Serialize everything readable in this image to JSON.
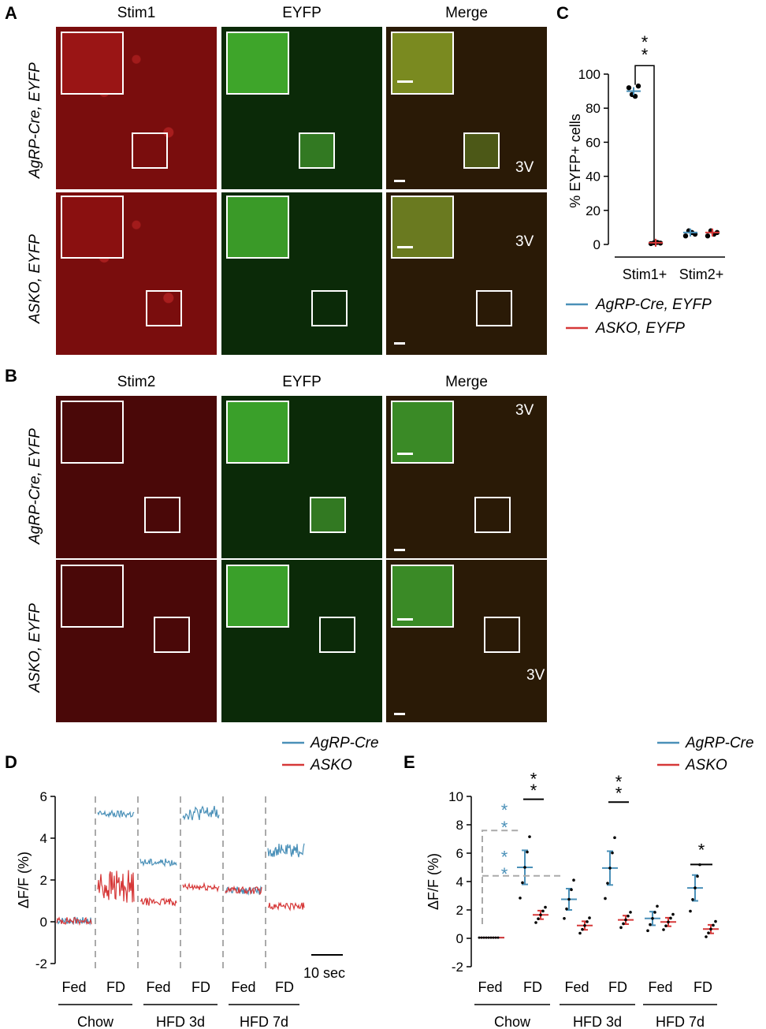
{
  "panel_labels": {
    "a": "A",
    "b": "B",
    "c": "C",
    "d": "D",
    "e": "E"
  },
  "panelA": {
    "columns": [
      "Stim1",
      "EYFP",
      "Merge"
    ],
    "rows": [
      "AgRP-Cre, EYFP",
      "ASKO, EYFP"
    ],
    "ventricle": "3V"
  },
  "panelB": {
    "columns": [
      "Stim2",
      "EYFP",
      "Merge"
    ],
    "rows": [
      "AgRP-Cre, EYFP",
      "ASKO, EYFP"
    ],
    "ventricle": "3V"
  },
  "colors": {
    "agrp": "#4a90b8",
    "asko": "#d63838"
  },
  "chart_data": [
    {
      "panel": "C",
      "type": "scatter",
      "ylabel": "% EYFP+ cells",
      "ylim": [
        0,
        100
      ],
      "yticks": [
        0,
        20,
        40,
        60,
        80,
        100
      ],
      "categories": [
        "Stim1+",
        "Stim2+"
      ],
      "series": [
        {
          "name": "AgRP-Cre, EYFP",
          "mean": [
            90,
            7
          ],
          "points": [
            [
              92,
              88,
              87,
              93
            ],
            [
              5,
              8,
              7,
              6
            ]
          ]
        },
        {
          "name": "ASKO, EYFP",
          "mean": [
            1,
            7
          ],
          "points": [
            [
              0.5,
              1,
              1.2,
              0.8
            ],
            [
              5,
              8,
              6,
              7
            ]
          ]
        }
      ],
      "significance": "* *",
      "legend": [
        "AgRP-Cre, EYFP",
        "ASKO, EYFP"
      ]
    },
    {
      "panel": "D",
      "type": "line",
      "ylabel": "ΔF/F (%)",
      "ylim": [
        -2,
        6
      ],
      "yticks": [
        -2,
        0,
        2,
        4,
        6
      ],
      "scalebar": "10 sec",
      "conditions": [
        "Fed",
        "FD",
        "Fed",
        "FD",
        "Fed",
        "FD"
      ],
      "groups": [
        "Chow",
        "HFD 3d",
        "HFD 7d"
      ],
      "series": [
        {
          "name": "AgRP-Cre",
          "levels": [
            0.05,
            5.15,
            2.85,
            5.2,
            1.5,
            3.4
          ]
        },
        {
          "name": "ASKO",
          "levels": [
            0.05,
            1.7,
            0.95,
            1.65,
            1.5,
            0.75
          ]
        }
      ]
    },
    {
      "panel": "E",
      "type": "scatter",
      "ylabel": "ΔF/F (%)",
      "ylim": [
        -2,
        10
      ],
      "yticks": [
        -2,
        0,
        2,
        4,
        6,
        8,
        10
      ],
      "conditions": [
        "Fed",
        "FD",
        "Fed",
        "FD",
        "Fed",
        "FD"
      ],
      "groups": [
        "Chow",
        "HFD 3d",
        "HFD 7d"
      ],
      "series": [
        {
          "name": "AgRP-Cre",
          "mean": [
            0.05,
            5.0,
            2.75,
            4.95,
            1.4,
            3.55
          ]
        },
        {
          "name": "ASKO",
          "mean": [
            0.05,
            1.65,
            0.9,
            1.3,
            1.15,
            0.65
          ]
        }
      ],
      "significance": [
        "* *",
        "* *",
        "* *",
        "* *",
        "*"
      ]
    }
  ]
}
